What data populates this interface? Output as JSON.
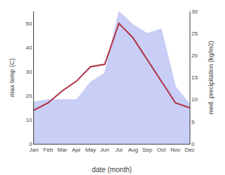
{
  "chart_data": {
    "type": "line",
    "categories": [
      "Jan",
      "Feb",
      "Mar",
      "Apr",
      "May",
      "Jun",
      "Jul",
      "Aug",
      "Sep",
      "Oct",
      "Nov",
      "Dec"
    ],
    "xlabel": "date (month)",
    "ylabel": "max temp (C)",
    "y2label": "med. precipitation (kg/m2)",
    "ylim": [
      0,
      55
    ],
    "yticks": [
      0,
      10,
      20,
      30,
      40,
      50
    ],
    "y2lim": [
      0,
      30
    ],
    "y2ticks": [
      0,
      5,
      10,
      15,
      20,
      25,
      30
    ],
    "grid": false,
    "series": [
      {
        "type": "area",
        "color": "#c8cef5",
        "axis": "y2",
        "values": [
          9.5,
          10,
          10,
          10,
          14,
          16,
          30,
          27,
          25,
          26,
          13,
          9
        ]
      },
      {
        "type": "line",
        "color": "#b03040",
        "values": [
          14,
          17,
          22,
          26,
          32,
          33,
          50,
          44,
          35,
          26,
          17,
          15
        ]
      }
    ]
  }
}
